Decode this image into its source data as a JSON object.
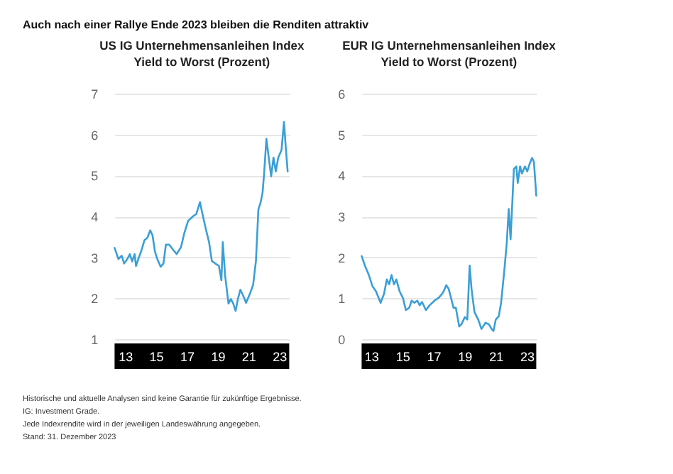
{
  "chart_data": [
    {
      "type": "line",
      "title": "US IG Unternehmensanleihen Index",
      "subtitle": "Yield to Worst (Prozent)",
      "xlim": [
        12.32,
        23.65
      ],
      "xticks": [
        13,
        15,
        17,
        19,
        21,
        23
      ],
      "ylim": [
        1,
        7
      ],
      "yticks": [
        1,
        2,
        3,
        4,
        5,
        6,
        7
      ],
      "grid": "y",
      "x": [
        12.32,
        12.57,
        12.78,
        12.94,
        13.15,
        13.31,
        13.46,
        13.62,
        13.71,
        13.86,
        14.08,
        14.26,
        14.45,
        14.63,
        14.78,
        14.94,
        15.09,
        15.31,
        15.49,
        15.65,
        15.86,
        16.11,
        16.35,
        16.63,
        16.85,
        17.09,
        17.4,
        17.62,
        17.86,
        18.02,
        18.23,
        18.45,
        18.63,
        18.85,
        19.09,
        19.25,
        19.34,
        19.49,
        19.71,
        19.86,
        20.02,
        20.17,
        20.32,
        20.48,
        20.69,
        20.85,
        21.09,
        21.31,
        21.49,
        21.65,
        21.8,
        21.92,
        22.02,
        22.17,
        22.32,
        22.48,
        22.63,
        22.78,
        22.94,
        23.15,
        23.31,
        23.43,
        23.55
      ],
      "series": [
        {
          "color": "#3a9fd6",
          "values": [
            3.23,
            2.96,
            3.04,
            2.85,
            2.96,
            3.08,
            2.9,
            3.08,
            2.79,
            2.96,
            3.19,
            3.42,
            3.48,
            3.66,
            3.54,
            3.14,
            2.96,
            2.77,
            2.85,
            3.31,
            3.31,
            3.19,
            3.08,
            3.25,
            3.6,
            3.89,
            4.0,
            4.06,
            4.35,
            4.06,
            3.71,
            3.37,
            2.91,
            2.85,
            2.79,
            2.44,
            3.37,
            2.56,
            1.87,
            1.98,
            1.87,
            1.69,
            1.98,
            2.21,
            2.04,
            1.89,
            2.1,
            2.33,
            2.91,
            4.17,
            4.35,
            4.58,
            5.04,
            5.9,
            5.44,
            4.98,
            5.44,
            5.1,
            5.44,
            5.62,
            6.31,
            5.67,
            5.1
          ]
        }
      ]
    },
    {
      "type": "line",
      "title": "EUR IG Unternehmensanleihen Index",
      "subtitle": "Yield to Worst (Prozent)",
      "xlim": [
        12.39,
        23.61
      ],
      "xticks": [
        13,
        15,
        17,
        19,
        21,
        23
      ],
      "ylim": [
        0,
        6
      ],
      "yticks": [
        0,
        1,
        2,
        3,
        4,
        5,
        6
      ],
      "grid": "y",
      "x": [
        12.39,
        12.6,
        12.85,
        13.09,
        13.31,
        13.61,
        13.83,
        14.01,
        14.16,
        14.31,
        14.47,
        14.62,
        14.83,
        15.05,
        15.23,
        15.45,
        15.6,
        15.78,
        15.97,
        16.12,
        16.27,
        16.52,
        16.76,
        17.07,
        17.37,
        17.62,
        17.83,
        17.98,
        18.14,
        18.29,
        18.44,
        18.66,
        18.81,
        19.02,
        19.18,
        19.33,
        19.45,
        19.64,
        19.88,
        20.09,
        20.34,
        20.55,
        20.74,
        20.86,
        21.01,
        21.2,
        21.35,
        21.56,
        21.72,
        21.84,
        21.96,
        22.08,
        22.17,
        22.33,
        22.42,
        22.57,
        22.69,
        22.88,
        23.03,
        23.18,
        23.34,
        23.46,
        23.61
      ],
      "series": [
        {
          "color": "#3a9fd6",
          "values": [
            2.03,
            1.8,
            1.57,
            1.29,
            1.17,
            0.89,
            1.11,
            1.46,
            1.34,
            1.57,
            1.34,
            1.46,
            1.17,
            1.0,
            0.71,
            0.77,
            0.94,
            0.89,
            0.94,
            0.83,
            0.91,
            0.71,
            0.83,
            0.94,
            1.02,
            1.14,
            1.32,
            1.23,
            1.0,
            0.77,
            0.77,
            0.31,
            0.37,
            0.54,
            0.48,
            1.8,
            1.23,
            0.66,
            0.48,
            0.25,
            0.4,
            0.37,
            0.25,
            0.2,
            0.48,
            0.56,
            0.89,
            1.69,
            2.38,
            3.18,
            2.44,
            3.41,
            4.16,
            4.22,
            3.82,
            4.22,
            4.05,
            4.22,
            4.1,
            4.28,
            4.43,
            4.33,
            3.51
          ]
        }
      ]
    },
    {
      "type": "other",
      "title": "Auch nach einer Rallye Ende 2023 bleiben die Renditen attraktiv",
      "annotations": [
        "Historische und aktuelle Analysen sind keine Garantie für zukünftige Ergebnisse.",
        "IG: Investment Grade.",
        "Jede Indexrendite wird in der jeweiligen Landeswährung angegeben.",
        "Stand: 31. Dezember 2023"
      ]
    }
  ]
}
